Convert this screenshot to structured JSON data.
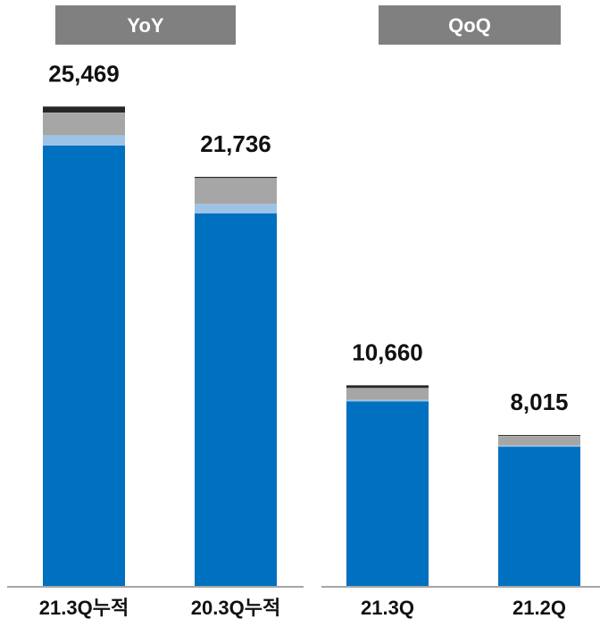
{
  "headers": [
    {
      "label": "YoY"
    },
    {
      "label": "QoQ"
    }
  ],
  "chart_data": {
    "type": "bar",
    "stacked": true,
    "grid": false,
    "legend": "none",
    "categories": [
      "21.3Q누적",
      "20.3Q누적",
      "21.3Q",
      "21.2Q"
    ],
    "totals": [
      "25,469",
      "21,736",
      "10,660",
      "8,015"
    ],
    "series": [
      {
        "color": "#0070C0",
        "values": [
          23400,
          19800,
          9800,
          7400
        ]
      },
      {
        "color": "#9DC3E6",
        "values": [
          550,
          500,
          80,
          70
        ]
      },
      {
        "color": "#A6A6A6",
        "values": [
          1200,
          1380,
          640,
          500
        ]
      },
      {
        "color": "#262626",
        "values": [
          319,
          56,
          140,
          45
        ]
      }
    ],
    "ylim": [
      0,
      28000
    ]
  }
}
